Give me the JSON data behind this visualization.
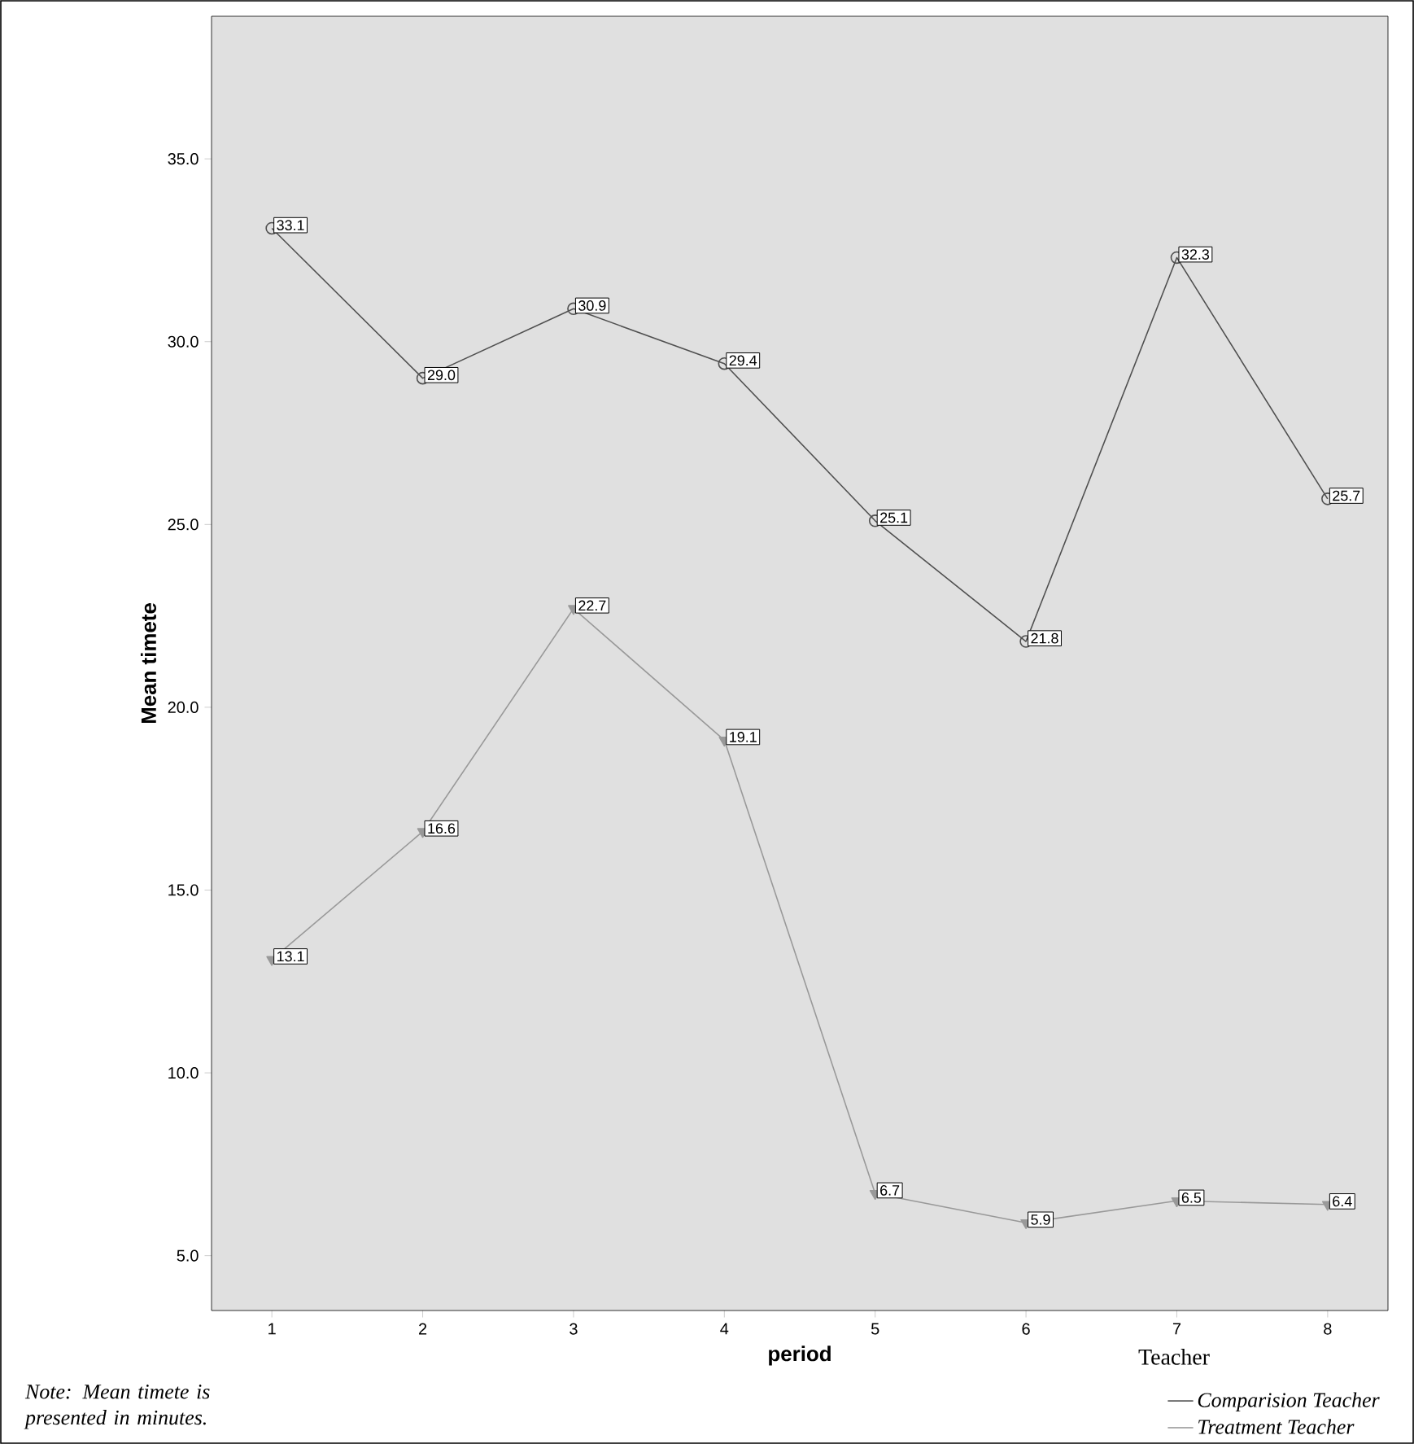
{
  "chart_data": {
    "type": "line",
    "xlabel": "period",
    "ylabel": "Mean timete",
    "legend_title": "Teacher",
    "x": [
      1,
      2,
      3,
      4,
      5,
      6,
      7,
      8
    ],
    "series": [
      {
        "name": "Comparision Teacher",
        "color": "#505050",
        "marker": "circle",
        "values": [
          33.1,
          29.0,
          30.9,
          29.4,
          25.1,
          21.8,
          32.3,
          25.7
        ],
        "value_labels": [
          "33.1",
          "29.0",
          "30.9",
          "29.4",
          "25.1",
          "21.8",
          "32.3",
          "25.7"
        ]
      },
      {
        "name": "Treatment Teacher",
        "color": "#999999",
        "marker": "triangle",
        "values": [
          13.1,
          16.6,
          22.7,
          19.1,
          6.7,
          5.9,
          6.5,
          6.4
        ],
        "value_labels": [
          "13.1",
          "16.6",
          "22.7",
          "19.1",
          "6.7",
          "5.9",
          "6.5",
          "6.4"
        ]
      }
    ],
    "xlim": [
      0.6,
      8.4
    ],
    "xticks": [
      1,
      2,
      3,
      4,
      5,
      6,
      7,
      8
    ],
    "ylim": [
      3.5,
      38.9
    ],
    "yticks": [
      {
        "value": 5,
        "label": "5.0"
      },
      {
        "value": 10,
        "label": "10.0"
      },
      {
        "value": 15,
        "label": "15.0"
      },
      {
        "value": 20,
        "label": "20.0"
      },
      {
        "value": 25,
        "label": "25.0"
      },
      {
        "value": 30,
        "label": "30.0"
      },
      {
        "value": 35,
        "label": "35.0"
      }
    ],
    "grid": false,
    "legend": "bottom right",
    "annotations": [
      "Note: Mean timete is presented in minutes."
    ]
  }
}
